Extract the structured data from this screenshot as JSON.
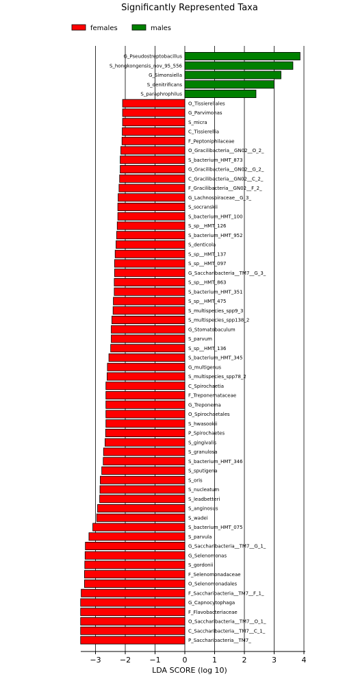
{
  "chart_data": {
    "type": "bar",
    "orientation": "horizontal",
    "title": "Significantly Represented Taxa",
    "xlabel": "LDA SCORE (log 10)",
    "ylabel": "",
    "xlim": [
      -3.5,
      4
    ],
    "xticks": [
      "−3",
      "−2",
      "−1",
      "0",
      "1",
      "2",
      "3",
      "4"
    ],
    "xtick_values": [
      -3,
      -2,
      -1,
      0,
      1,
      2,
      3,
      4
    ],
    "grid": "vertical lines at integer ticks",
    "legend_position": "top-left",
    "series": [
      {
        "name": "females",
        "color": "#ff0000"
      },
      {
        "name": "males",
        "color": "#008000"
      }
    ],
    "bars": [
      {
        "label": "G_Pseudostreptobacillus",
        "value": 3.87,
        "group": "males"
      },
      {
        "label": "S_hongkongensis_nov_95_556",
        "value": 3.63,
        "group": "males"
      },
      {
        "label": "G_Simonsiella",
        "value": 3.23,
        "group": "males"
      },
      {
        "label": "S_denitrificans",
        "value": 3.0,
        "group": "males"
      },
      {
        "label": "S_paraphrophilus",
        "value": 2.39,
        "group": "males"
      },
      {
        "label": "O_Tissierellales",
        "value": -2.09,
        "group": "females"
      },
      {
        "label": "G_Parvimonas",
        "value": -2.09,
        "group": "females"
      },
      {
        "label": "S_micra",
        "value": -2.09,
        "group": "females"
      },
      {
        "label": "C_Tissierellia",
        "value": -2.1,
        "group": "females"
      },
      {
        "label": "F_Peptoniphilaceae",
        "value": -2.11,
        "group": "females"
      },
      {
        "label": "O_Gracilibacteria__GN02__O_2_",
        "value": -2.15,
        "group": "females"
      },
      {
        "label": "S_bacterium_HMT_873",
        "value": -2.17,
        "group": "females"
      },
      {
        "label": "G_Gracilibacteria__GN02__G_2_",
        "value": -2.17,
        "group": "females"
      },
      {
        "label": "C_Gracilibacteria__GN02__C_2_",
        "value": -2.19,
        "group": "females"
      },
      {
        "label": "F_Gracilibacteria__GN02__F_2_",
        "value": -2.21,
        "group": "females"
      },
      {
        "label": "G_Lachnospiraceae__G_3_",
        "value": -2.24,
        "group": "females"
      },
      {
        "label": "S_socranskii",
        "value": -2.25,
        "group": "females"
      },
      {
        "label": "S_bacterium_HMT_100",
        "value": -2.25,
        "group": "females"
      },
      {
        "label": "S_sp__HMT_126",
        "value": -2.27,
        "group": "females"
      },
      {
        "label": "S_bacterium_HMT_952",
        "value": -2.29,
        "group": "females"
      },
      {
        "label": "S_denticola",
        "value": -2.31,
        "group": "females"
      },
      {
        "label": "S_sp__HMT_137",
        "value": -2.34,
        "group": "females"
      },
      {
        "label": "S_sp__HMT_097",
        "value": -2.36,
        "group": "females"
      },
      {
        "label": "G_Saccharibacteria__TM7__G_3_",
        "value": -2.36,
        "group": "females"
      },
      {
        "label": "S_sp__HMT_863",
        "value": -2.37,
        "group": "females"
      },
      {
        "label": "S_bacterium_HMT_351",
        "value": -2.37,
        "group": "females"
      },
      {
        "label": "S_sp__HMT_475",
        "value": -2.4,
        "group": "females"
      },
      {
        "label": "S_multispecies_spp9_3",
        "value": -2.41,
        "group": "females"
      },
      {
        "label": "S_multispecies_spp138_2",
        "value": -2.45,
        "group": "females"
      },
      {
        "label": "G_Stomatobaculum",
        "value": -2.47,
        "group": "females"
      },
      {
        "label": "S_parvum",
        "value": -2.47,
        "group": "females"
      },
      {
        "label": "S_sp__HMT_136",
        "value": -2.49,
        "group": "females"
      },
      {
        "label": "S_bacterium_HMT_345",
        "value": -2.55,
        "group": "females"
      },
      {
        "label": "G_multigenus",
        "value": -2.6,
        "group": "females"
      },
      {
        "label": "S_multispecies_spp78_2",
        "value": -2.61,
        "group": "females"
      },
      {
        "label": "C_Spirochaetia",
        "value": -2.65,
        "group": "females"
      },
      {
        "label": "F_Treponemataceae",
        "value": -2.65,
        "group": "females"
      },
      {
        "label": "G_Treponema",
        "value": -2.65,
        "group": "females"
      },
      {
        "label": "O_Spirochaetales",
        "value": -2.65,
        "group": "females"
      },
      {
        "label": "S_hwasookii",
        "value": -2.65,
        "group": "females"
      },
      {
        "label": "P_Spirochaetes",
        "value": -2.66,
        "group": "females"
      },
      {
        "label": "S_gingivalis",
        "value": -2.68,
        "group": "females"
      },
      {
        "label": "S_granulosa",
        "value": -2.73,
        "group": "females"
      },
      {
        "label": "S_bacterium_HMT_346",
        "value": -2.74,
        "group": "females"
      },
      {
        "label": "S_sputigena",
        "value": -2.79,
        "group": "females"
      },
      {
        "label": "S_oris",
        "value": -2.84,
        "group": "females"
      },
      {
        "label": "S_nucleatum",
        "value": -2.85,
        "group": "females"
      },
      {
        "label": "S_leadbetteri",
        "value": -2.86,
        "group": "females"
      },
      {
        "label": "S_anginosus",
        "value": -2.93,
        "group": "females"
      },
      {
        "label": "S_wadei",
        "value": -2.96,
        "group": "females"
      },
      {
        "label": "S_bacterium_HMT_075",
        "value": -3.09,
        "group": "females"
      },
      {
        "label": "S_parvula",
        "value": -3.22,
        "group": "females"
      },
      {
        "label": "G_Saccharibacteria__TM7__G_1_",
        "value": -3.34,
        "group": "females"
      },
      {
        "label": "G_Selenomonas",
        "value": -3.35,
        "group": "females"
      },
      {
        "label": "S_gordonii",
        "value": -3.36,
        "group": "females"
      },
      {
        "label": "F_Selenomonadaceae",
        "value": -3.37,
        "group": "females"
      },
      {
        "label": "O_Selenomonadales",
        "value": -3.37,
        "group": "females"
      },
      {
        "label": "F_Saccharibacteria__TM7__F_1_",
        "value": -3.48,
        "group": "females"
      },
      {
        "label": "G_Capnocytophaga",
        "value": -3.5,
        "group": "females"
      },
      {
        "label": "F_Flavobacteriaceae",
        "value": -3.5,
        "group": "females"
      },
      {
        "label": "O_Saccharibacteria__TM7__O_1_",
        "value": -3.5,
        "group": "females"
      },
      {
        "label": "C_Saccharibacteria__TM7__C_1_",
        "value": -3.5,
        "group": "females"
      },
      {
        "label": "P_Saccharibacteria__TM7_",
        "value": -3.5,
        "group": "females"
      }
    ]
  }
}
